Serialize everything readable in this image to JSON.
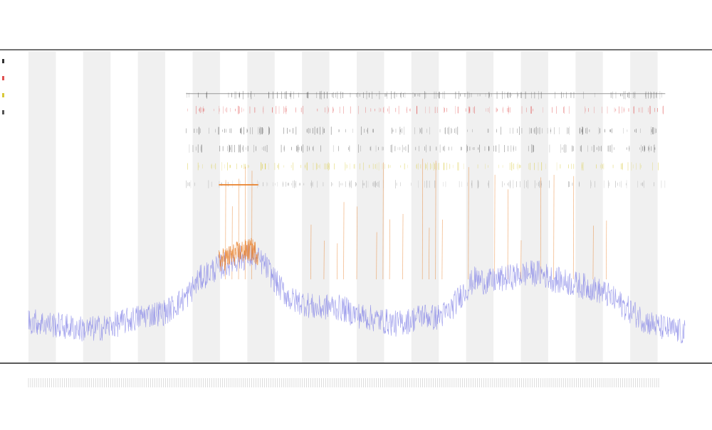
{
  "chart_data": {
    "type": "line",
    "title": "",
    "subtitle_lines": [
      "",
      ""
    ],
    "xlabel": "",
    "ylabel": "",
    "grid": false,
    "legend_position": "top-left",
    "colors": {
      "coverage": "#8a8ae8",
      "highlight": "#e8802a",
      "band": "#f0f0f0",
      "axis": "#444444",
      "track_dark": "#555555",
      "track_red": "#e05050",
      "track_yellow": "#d8c838",
      "track_gray": "#999999"
    },
    "legend": [
      {
        "name": "",
        "color": "#333333"
      },
      {
        "name": "",
        "color": "#e05050"
      },
      {
        "name": "",
        "color": "#d8c838"
      },
      {
        "name": "",
        "color": "#555555"
      }
    ],
    "x_range": [
      0,
      100
    ],
    "y_range": [
      0,
      100
    ],
    "num_bands": 24,
    "coverage_profile": {
      "x": [
        0,
        3,
        6,
        9,
        12,
        15,
        18,
        21,
        24,
        26,
        28,
        30,
        32,
        34,
        36,
        38,
        40,
        42,
        44,
        46,
        48,
        50,
        52,
        54,
        56,
        58,
        60,
        62,
        64,
        66,
        68,
        70,
        72,
        74,
        76,
        78,
        80,
        82,
        84,
        86,
        88,
        90,
        92,
        94,
        96,
        98,
        100
      ],
      "y": [
        14,
        13,
        12,
        11,
        12,
        14,
        16,
        17,
        22,
        28,
        31,
        33,
        35,
        36,
        33,
        26,
        21,
        20,
        18,
        19,
        18,
        16,
        15,
        14,
        13,
        14,
        16,
        15,
        17,
        23,
        28,
        27,
        28,
        29,
        30,
        30,
        28,
        27,
        26,
        25,
        23,
        20,
        17,
        14,
        12,
        11,
        10
      ]
    },
    "highlight_region": {
      "x_start": 29,
      "x_end": 35,
      "y": 28
    },
    "spike_positions": [
      30,
      31,
      32,
      33,
      34,
      43,
      45,
      47,
      48,
      50,
      53,
      54,
      55,
      57,
      60,
      61,
      62,
      63,
      67,
      71,
      73,
      75,
      78,
      80,
      83,
      86,
      88
    ],
    "track_rows": [
      {
        "name": "",
        "y": 90,
        "color": "#555555"
      },
      {
        "name": "",
        "y": 85,
        "color": "#e05050"
      },
      {
        "name": "",
        "y": 78,
        "color": "#555555"
      },
      {
        "name": "",
        "y": 72,
        "color": "#555555"
      },
      {
        "name": "",
        "y": 66,
        "color": "#d8c838"
      },
      {
        "name": "",
        "y": 60,
        "color": "#999999"
      }
    ],
    "track_x_range": [
      24,
      97
    ]
  }
}
